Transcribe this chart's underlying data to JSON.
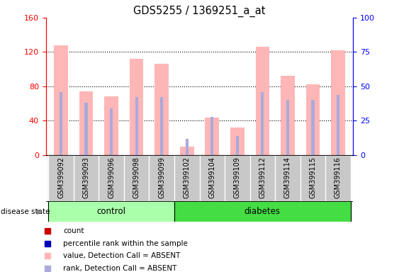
{
  "title": "GDS5255 / 1369251_a_at",
  "samples": [
    "GSM399092",
    "GSM399093",
    "GSM399096",
    "GSM399098",
    "GSM399099",
    "GSM399102",
    "GSM399104",
    "GSM399109",
    "GSM399112",
    "GSM399114",
    "GSM399115",
    "GSM399116"
  ],
  "control_count": 5,
  "diabetes_count": 7,
  "pink_values": [
    128,
    74,
    68,
    112,
    106,
    10,
    44,
    32,
    126,
    92,
    82,
    122
  ],
  "blue_rank_values": [
    46,
    38,
    34,
    42,
    42,
    12,
    28,
    14,
    46,
    40,
    40,
    44
  ],
  "ylim_left": [
    0,
    160
  ],
  "ylim_right": [
    0,
    100
  ],
  "left_yticks": [
    0,
    40,
    80,
    120,
    160
  ],
  "right_yticks": [
    0,
    25,
    50,
    75,
    100
  ],
  "pink_bar_color": "#FFB6B6",
  "blue_bar_color": "#AAAADD",
  "red_square_color": "#CC0000",
  "blue_square_color": "#0000BB",
  "control_bg": "#AAFFAA",
  "diabetes_bg": "#44DD44",
  "bar_width": 0.55,
  "blue_bar_width": 0.12,
  "grid_color": "black",
  "ytick_left_color": "red",
  "ytick_right_color": "blue",
  "sample_col_color": "#C8C8C8",
  "sample_col_border": "white"
}
